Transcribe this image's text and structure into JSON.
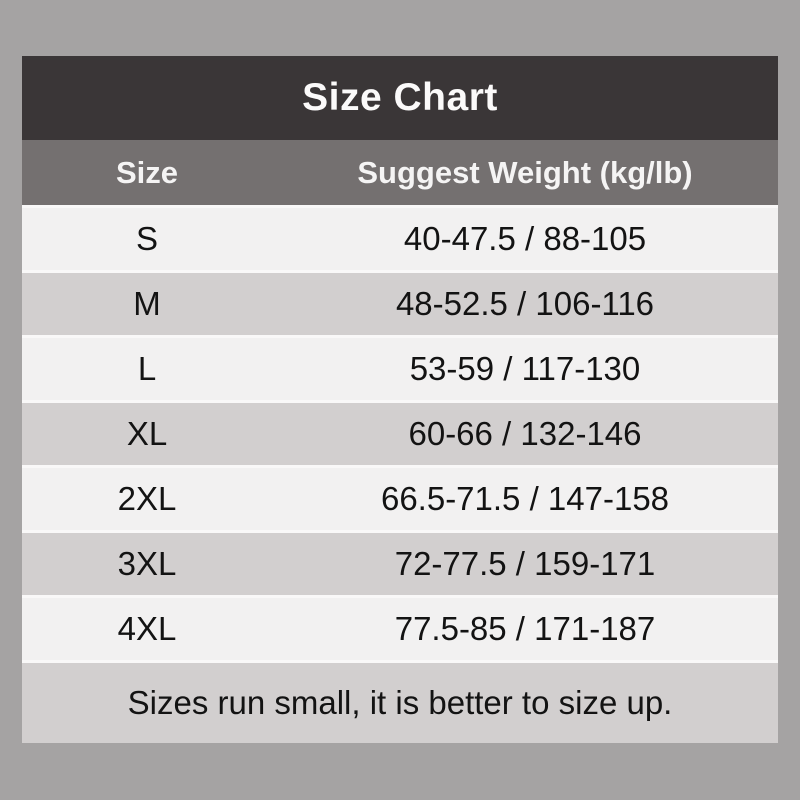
{
  "page": {
    "background_color": "#a5a3a3"
  },
  "table": {
    "title": "Size Chart",
    "columns": [
      {
        "label": "Size"
      },
      {
        "label": "Suggest Weight (kg/lb)"
      }
    ],
    "rows": [
      {
        "size": "S",
        "weight": "40-47.5 / 88-105"
      },
      {
        "size": "M",
        "weight": "48-52.5 / 106-116"
      },
      {
        "size": "L",
        "weight": "53-59 / 117-130"
      },
      {
        "size": "XL",
        "weight": "60-66 / 132-146"
      },
      {
        "size": "2XL",
        "weight": "66.5-71.5 / 147-158"
      },
      {
        "size": "3XL",
        "weight": "72-77.5 / 159-171"
      },
      {
        "size": "4XL",
        "weight": "77.5-85 / 171-187"
      }
    ],
    "note": "Sizes run small, it is better to size up.",
    "colors": {
      "title_bar_bg": "#3a3637",
      "header_row_bg": "#747070",
      "row_light_bg": "#f2f1f1",
      "row_dark_bg": "#d2cfcf",
      "note_bg": "#d2cfcf",
      "separator": "#f9f8f8",
      "header_text": "#f5f4f4",
      "body_text": "#131313",
      "canvas_bg": "#a5a3a3"
    }
  }
}
